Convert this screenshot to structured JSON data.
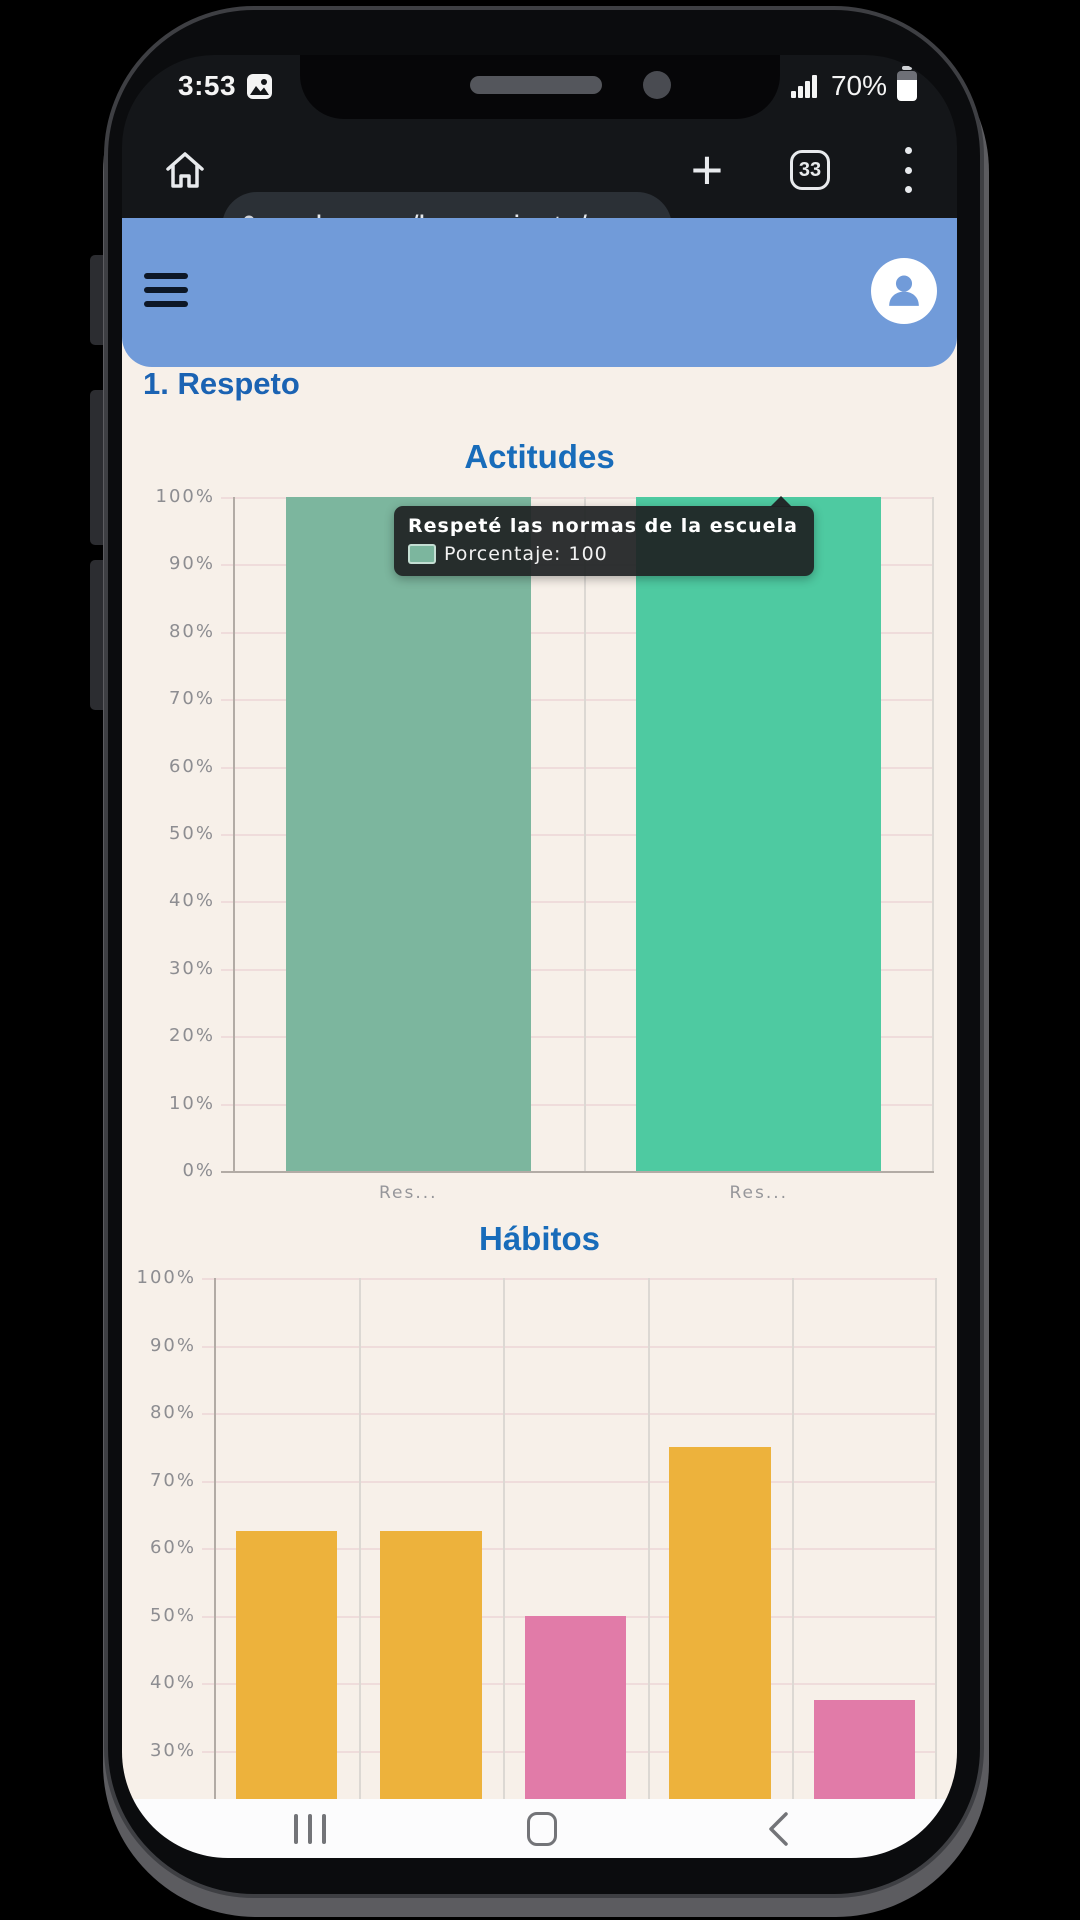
{
  "status_bar": {
    "time": "3:53",
    "battery_percent": "70%"
  },
  "browser": {
    "url": "valory.mx/herramienta/",
    "tab_count": "33"
  },
  "page": {
    "section_title": "1. Respeto"
  },
  "icons": {
    "status_left": [
      "image-icon"
    ],
    "status_right": [
      "signal-icon",
      "battery-icon"
    ],
    "browser": [
      "home-icon",
      "site-controls-icon",
      "new-tab-icon",
      "tab-counter",
      "menu-kebab-icon"
    ],
    "app_header": [
      "hamburger-menu-icon",
      "user-avatar-icon"
    ],
    "nav_bar": [
      "recents-icon",
      "home-nav-icon",
      "back-icon"
    ]
  },
  "colors": {
    "app_header_blue": "#719bd9",
    "title_blue": "#1b63b3",
    "page_background": "#f7f0e9",
    "teal_muted": "#7cb69e",
    "teal_bright": "#4ecaa1",
    "yellow": "#edb23c",
    "pink": "#e17ba8"
  },
  "chart_data": [
    {
      "type": "bar",
      "title": "Actitudes",
      "categories": [
        "Res...",
        "Res..."
      ],
      "series": [
        {
          "name": "Porcentaje",
          "values": [
            100,
            100
          ]
        }
      ],
      "bar_colors": [
        "#7cb69e",
        "#4ecaa1"
      ],
      "y_ticks": [
        "100%",
        "90%",
        "80%",
        "70%",
        "60%",
        "50%",
        "40%",
        "30%",
        "20%",
        "10%",
        "0%"
      ],
      "ylim": [
        0,
        100
      ],
      "grid": true,
      "legend": "none",
      "tooltip": {
        "title": "Respeté las normas de la escuela",
        "text": "Porcentaje: 100",
        "swatch_color": "#7cb69e"
      }
    },
    {
      "type": "bar",
      "title": "Hábitos",
      "categories": [
        "",
        "",
        "",
        "",
        ""
      ],
      "series": [
        {
          "name": "Porcentaje",
          "values": [
            62.5,
            62.5,
            50,
            75,
            37.5
          ]
        }
      ],
      "bar_colors": [
        "#edb23c",
        "#edb23c",
        "#e17ba8",
        "#edb23c",
        "#e17ba8"
      ],
      "y_ticks": [
        "100%",
        "90%",
        "80%",
        "70%",
        "60%",
        "50%",
        "40%",
        "30%"
      ],
      "ylim": [
        0,
        100
      ],
      "visible_y_range": [
        30,
        100
      ],
      "grid": true,
      "legend": "none"
    }
  ]
}
